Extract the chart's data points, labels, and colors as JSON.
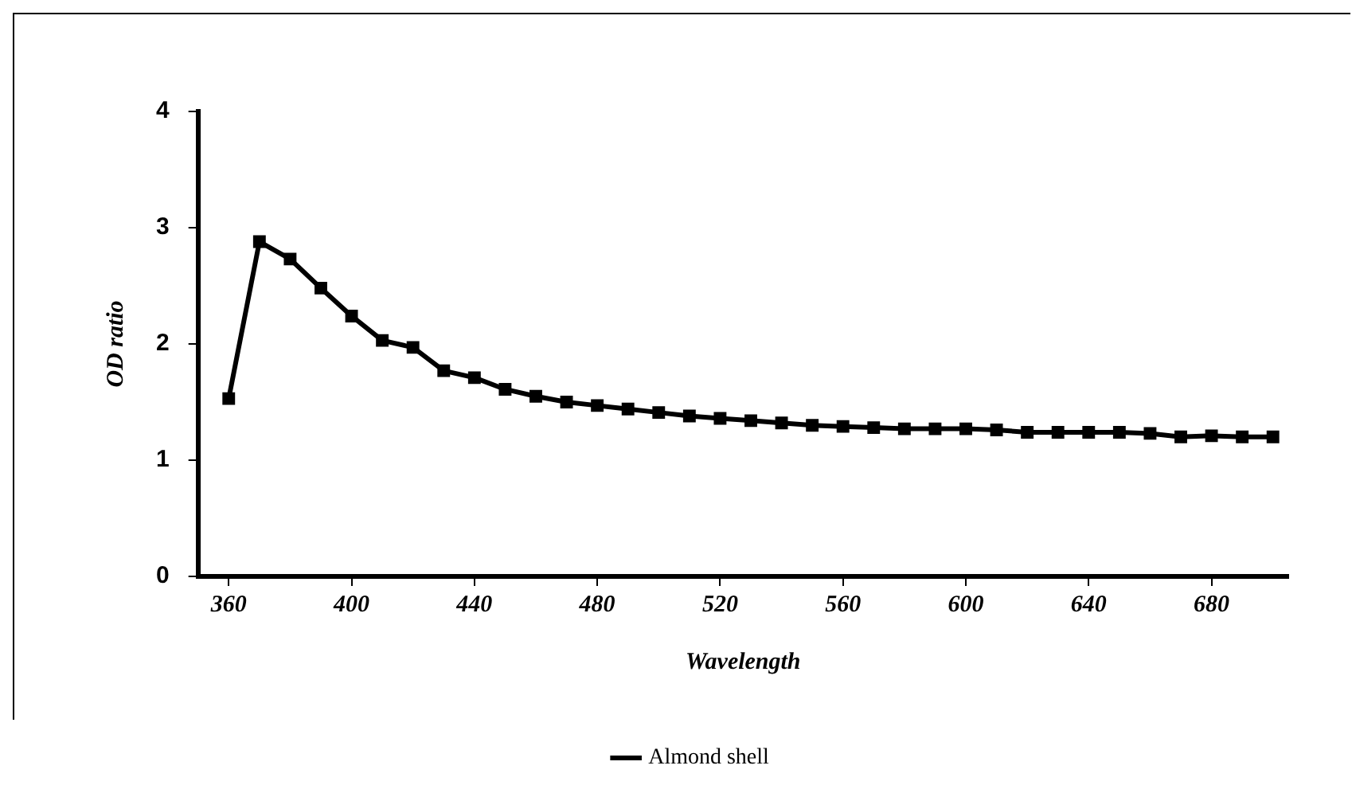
{
  "chart_data": {
    "type": "line",
    "xlabel": "Wavelength",
    "ylabel": "OD ratio",
    "x": [
      360,
      370,
      380,
      390,
      400,
      410,
      420,
      430,
      440,
      450,
      460,
      470,
      480,
      490,
      500,
      510,
      520,
      530,
      540,
      550,
      560,
      570,
      580,
      590,
      600,
      610,
      620,
      630,
      640,
      650,
      660,
      670,
      680,
      690,
      700
    ],
    "series": [
      {
        "name": "Almond shell",
        "color": "#000000",
        "values": [
          1.53,
          2.88,
          2.73,
          2.48,
          2.24,
          2.03,
          1.97,
          1.77,
          1.71,
          1.61,
          1.55,
          1.5,
          1.47,
          1.44,
          1.41,
          1.38,
          1.36,
          1.34,
          1.32,
          1.3,
          1.29,
          1.28,
          1.27,
          1.27,
          1.27,
          1.26,
          1.24,
          1.24,
          1.24,
          1.24,
          1.23,
          1.2,
          1.21,
          1.2,
          1.2
        ]
      }
    ],
    "xlim": [
      350,
      705
    ],
    "xticks": [
      360,
      400,
      440,
      480,
      520,
      560,
      600,
      640,
      680
    ],
    "ylim": [
      0,
      4
    ],
    "yticks": [
      0,
      1,
      2,
      3,
      4
    ],
    "grid": false,
    "legend": "bottom",
    "marker": "square",
    "line_style": "solid"
  }
}
